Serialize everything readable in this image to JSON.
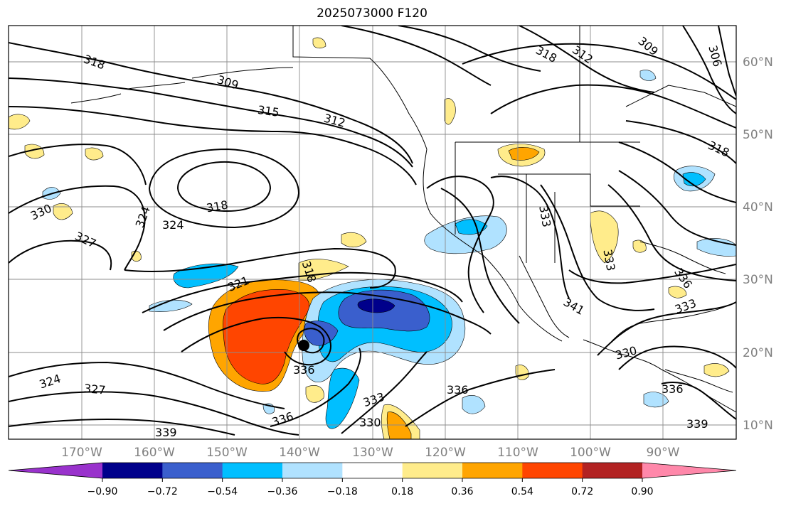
{
  "title": "2025073000 F120",
  "lat_labels": [
    "60°N",
    "50°N",
    "40°N",
    "30°N",
    "20°N",
    "10°N"
  ],
  "lon_labels": [
    "170°W",
    "160°W",
    "150°W",
    "140°W",
    "130°W",
    "120°W",
    "110°W",
    "100°W",
    "90°W"
  ],
  "contour_labels": [
    "318",
    "309",
    "315",
    "312",
    "318",
    "312",
    "309",
    "306",
    "318",
    "318",
    "330",
    "324",
    "324",
    "327",
    "321",
    "318",
    "336",
    "333",
    "333",
    "336",
    "333",
    "341",
    "330",
    "336",
    "339",
    "324",
    "327",
    "339",
    "336",
    "330",
    "333",
    "336"
  ],
  "colorbar": {
    "colors": [
      "#9932cc",
      "#00008b",
      "#3a5fcd",
      "#00bfff",
      "#b0e2ff",
      "#ffffff",
      "#ffec8b",
      "#ffa500",
      "#ff4500",
      "#b22222",
      "#ff88aa"
    ],
    "tick_labels": [
      "−0.90",
      "−0.72",
      "−0.54",
      "−0.36",
      "−0.18",
      "0.18",
      "0.36",
      "0.54",
      "0.72",
      "0.90"
    ]
  },
  "marker": "storm-center-marker"
}
